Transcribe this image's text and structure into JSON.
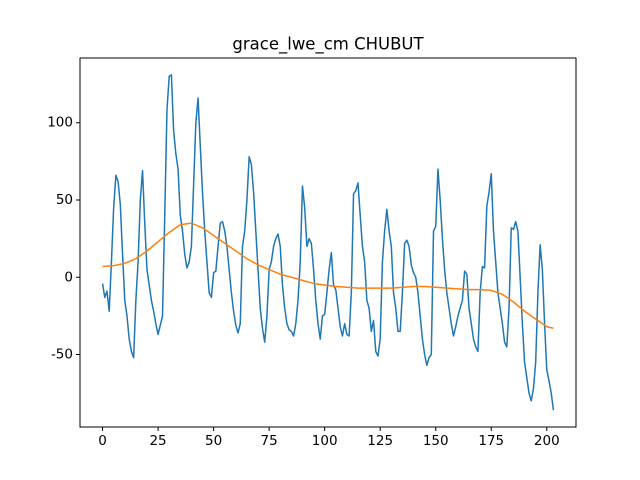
{
  "chart_data": {
    "type": "line",
    "title": "grace_lwe_cm CHUBUT",
    "xlim": [
      -10.15,
      213.15
    ],
    "xticks": [
      0,
      25,
      50,
      75,
      100,
      125,
      150,
      175,
      200
    ],
    "ylim": [
      -96.9,
      141.9
    ],
    "yticks": [
      -50,
      0,
      50,
      100
    ],
    "series": [
      {
        "color": "#1f77b4",
        "x": [
          0,
          1,
          2,
          3,
          4,
          5,
          6,
          7,
          8,
          9,
          10,
          11,
          12,
          13,
          14,
          15,
          16,
          17,
          18,
          19,
          20,
          21,
          22,
          23,
          24,
          25,
          26,
          27,
          28,
          29,
          30,
          31,
          32,
          33,
          34,
          35,
          36,
          37,
          38,
          39,
          40,
          41,
          42,
          43,
          44,
          45,
          46,
          47,
          48,
          49,
          50,
          51,
          52,
          53,
          54,
          55,
          56,
          57,
          58,
          59,
          60,
          61,
          62,
          63,
          64,
          65,
          66,
          67,
          68,
          69,
          70,
          71,
          72,
          73,
          74,
          75,
          76,
          77,
          78,
          79,
          80,
          81,
          82,
          83,
          84,
          85,
          86,
          87,
          88,
          89,
          90,
          91,
          92,
          93,
          94,
          95,
          96,
          97,
          98,
          99,
          100,
          101,
          102,
          103,
          104,
          105,
          106,
          107,
          108,
          109,
          110,
          111,
          112,
          113,
          114,
          115,
          116,
          117,
          118,
          119,
          120,
          121,
          122,
          123,
          124,
          125,
          126,
          127,
          128,
          129,
          130,
          131,
          132,
          133,
          134,
          135,
          136,
          137,
          138,
          139,
          140,
          141,
          142,
          143,
          144,
          145,
          146,
          147,
          148,
          149,
          150,
          151,
          152,
          153,
          154,
          155,
          156,
          157,
          158,
          159,
          160,
          161,
          162,
          163,
          164,
          165,
          166,
          167,
          168,
          169,
          170,
          171,
          172,
          173,
          174,
          175,
          176,
          177,
          178,
          179,
          180,
          181,
          182,
          183,
          184,
          185,
          186,
          187,
          188,
          189,
          190,
          191,
          192,
          193,
          194,
          195,
          196,
          197,
          198,
          199,
          200,
          201,
          202,
          203
        ],
        "values": [
          -4,
          -13,
          -9,
          -22,
          10,
          45,
          66,
          62,
          47,
          15,
          -15,
          -25,
          -40,
          -48,
          -52,
          -15,
          10,
          50,
          69,
          35,
          5,
          -5,
          -15,
          -22,
          -30,
          -37,
          -31,
          -25,
          40,
          108,
          130,
          131,
          95,
          80,
          70,
          40,
          30,
          15,
          6,
          10,
          20,
          60,
          100,
          116,
          85,
          55,
          30,
          10,
          -10,
          -13,
          3,
          4,
          20,
          35,
          36,
          30,
          20,
          5,
          -10,
          -22,
          -31,
          -36,
          -30,
          20,
          30,
          50,
          78,
          73,
          55,
          30,
          5,
          -20,
          -33,
          -42,
          -25,
          5,
          10,
          20,
          25,
          28,
          20,
          -5,
          -20,
          -30,
          -34,
          -35,
          -38,
          -30,
          -15,
          10,
          59,
          45,
          20,
          25,
          22,
          5,
          -15,
          -30,
          -40,
          -25,
          -24,
          -10,
          5,
          16,
          -5,
          -8,
          -20,
          -32,
          -38,
          -30,
          -37,
          -38,
          -10,
          54,
          56,
          61,
          40,
          20,
          10,
          -15,
          -20,
          -35,
          -28,
          -48,
          -51,
          -40,
          10,
          30,
          44,
          30,
          20,
          -10,
          -20,
          -35,
          -35,
          -10,
          22,
          24,
          20,
          8,
          3,
          0,
          -10,
          -25,
          -40,
          -50,
          -57,
          -52,
          -50,
          30,
          33,
          70,
          50,
          25,
          5,
          -10,
          -20,
          -30,
          -38,
          -32,
          -25,
          -20,
          -15,
          4,
          2,
          -20,
          -30,
          -40,
          -45,
          -48,
          -10,
          7,
          6,
          46,
          55,
          67,
          30,
          10,
          -10,
          -20,
          -30,
          -42,
          -45,
          -20,
          32,
          31,
          36,
          30,
          0,
          -30,
          -55,
          -65,
          -75,
          -80,
          -72,
          -55,
          -10,
          21,
          5,
          -30,
          -60,
          -67,
          -75,
          -86
        ]
      },
      {
        "color": "#ff7f0e",
        "x": [
          0,
          5,
          10,
          15,
          20,
          25,
          30,
          35,
          40,
          45,
          50,
          55,
          60,
          65,
          70,
          75,
          80,
          85,
          90,
          95,
          100,
          105,
          110,
          115,
          120,
          125,
          130,
          135,
          140,
          145,
          150,
          155,
          160,
          165,
          170,
          175,
          180,
          185,
          190,
          195,
          200,
          203
        ],
        "values": [
          7,
          7.5,
          9,
          12,
          17,
          23,
          29,
          34,
          35,
          32,
          27,
          22,
          17,
          12,
          8,
          5,
          2,
          0,
          -2,
          -4,
          -5,
          -6,
          -6.5,
          -7,
          -7,
          -7,
          -7,
          -6.5,
          -6,
          -6,
          -6.5,
          -7,
          -7.5,
          -8,
          -8,
          -8.5,
          -11,
          -16,
          -22,
          -27,
          -32,
          -33
        ]
      }
    ]
  }
}
